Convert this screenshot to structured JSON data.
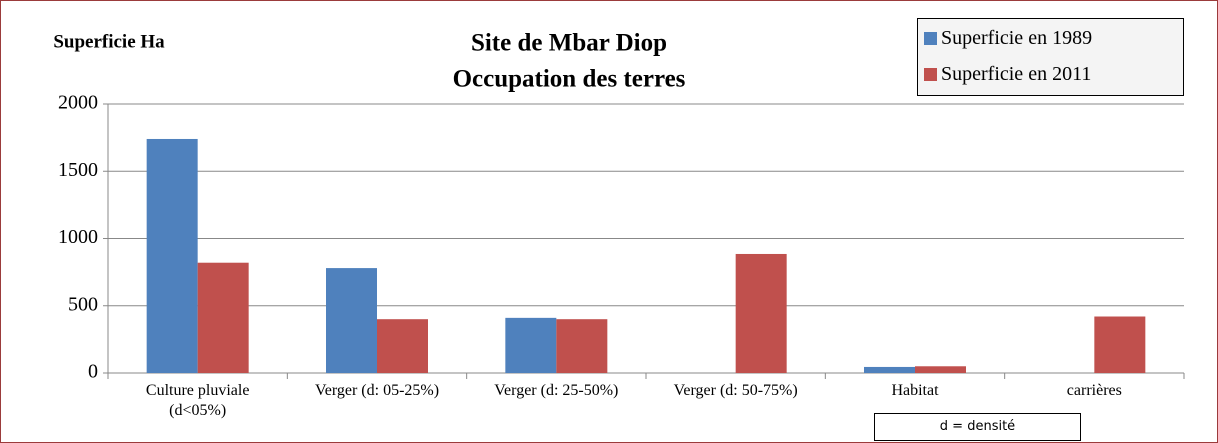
{
  "chart_data": {
    "type": "bar",
    "title": "Site de Mbar Diop",
    "subtitle": "Occupation des terres",
    "y_label": "Superficie Ha",
    "note": "d = densité",
    "categories": [
      "Culture pluviale (d<05%)",
      "Verger (d: 05-25%)",
      "Verger (d: 25-50%)",
      "Verger (d: 50-75%)",
      "Habitat",
      "carrières"
    ],
    "series": [
      {
        "name": "Superficie en 1989",
        "color": "#4f81bd",
        "values": [
          1740,
          780,
          410,
          0,
          45,
          0
        ]
      },
      {
        "name": "Superficie en 2011",
        "color": "#c0504d",
        "values": [
          820,
          400,
          400,
          885,
          50,
          420
        ]
      }
    ],
    "ylim": [
      0,
      2000
    ],
    "yticks": [
      0,
      500,
      1000,
      1500,
      2000
    ],
    "grid": true,
    "legend": "top-right"
  }
}
